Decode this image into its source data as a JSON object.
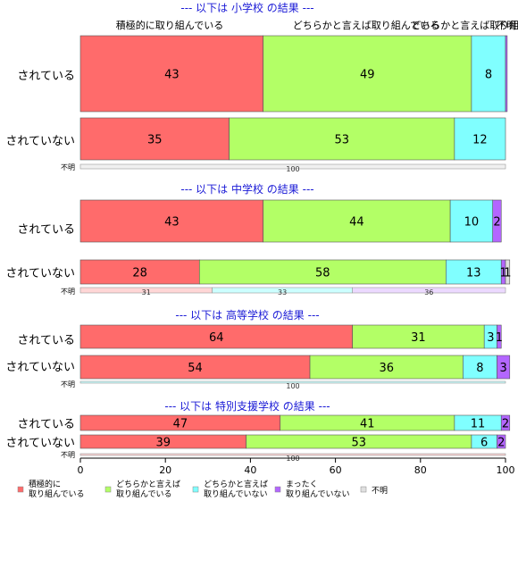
{
  "chart_data": {
    "type": "bar",
    "orientation": "horizontal",
    "stacked": true,
    "xlim": [
      0,
      100
    ],
    "x_ticks": [
      0,
      20,
      40,
      60,
      80,
      100
    ],
    "categories": [
      "積極的に取り組んでいる",
      "どちらかと言えば取り組んでいる",
      "どちらかと言えば取り組んでいない",
      "まったく取り組んでいない",
      "不明"
    ],
    "legend_labels": [
      [
        "積極的に",
        "取り組んでいる"
      ],
      [
        "どちらかと言えば",
        "取り組んでいる"
      ],
      [
        "どちらかと言えば",
        "取り組んでいない"
      ],
      [
        "まったく",
        "取り組んでいない"
      ],
      [
        "不明"
      ]
    ],
    "header_labels": [
      "積極的に取り組んでいる",
      "どちらかと言えば取り組んでいる",
      "どちらかと言えば取り組んでいない",
      "不明"
    ],
    "colors": [
      "#ff6b6b",
      "#b3ff66",
      "#80ffff",
      "#b366ff",
      "#e0e0e0"
    ],
    "legend_position": "bottom",
    "groups": [
      {
        "title": "--- 以下は 小学校 の結果 ---",
        "rows": [
          {
            "label": "されている",
            "values": [
              43,
              49,
              8,
              0.4,
              0
            ]
          },
          {
            "label": "されていない",
            "values": [
              35,
              53,
              12,
              0,
              0
            ]
          },
          {
            "label": "不明",
            "values": [
              0,
              0,
              0,
              0,
              100
            ],
            "small": true
          }
        ]
      },
      {
        "title": "--- 以下は 中学校 の結果 ---",
        "rows": [
          {
            "label": "されている",
            "values": [
              43,
              44,
              10,
              2,
              0
            ]
          },
          {
            "label": "されていない",
            "values": [
              28,
              58,
              13,
              1,
              1
            ]
          },
          {
            "label": "不明",
            "values": [
              31,
              0,
              33,
              36,
              0
            ],
            "small": true
          }
        ]
      },
      {
        "title": "--- 以下は 高等学校 の結果 ---",
        "rows": [
          {
            "label": "されている",
            "values": [
              64,
              31,
              3,
              1,
              0
            ]
          },
          {
            "label": "されていない",
            "values": [
              54,
              36,
              8,
              3,
              0
            ]
          },
          {
            "label": "不明",
            "values": [
              0,
              0,
              100,
              0,
              0
            ],
            "small": true
          }
        ]
      },
      {
        "title": "--- 以下は 特別支援学校 の結果 ---",
        "rows": [
          {
            "label": "されている",
            "values": [
              47,
              41,
              11,
              2,
              0
            ]
          },
          {
            "label": "されていない",
            "values": [
              39,
              53,
              6,
              2,
              0
            ]
          },
          {
            "label": "不明",
            "values": [
              100,
              0,
              0,
              0,
              0
            ],
            "small": true
          }
        ]
      }
    ]
  }
}
